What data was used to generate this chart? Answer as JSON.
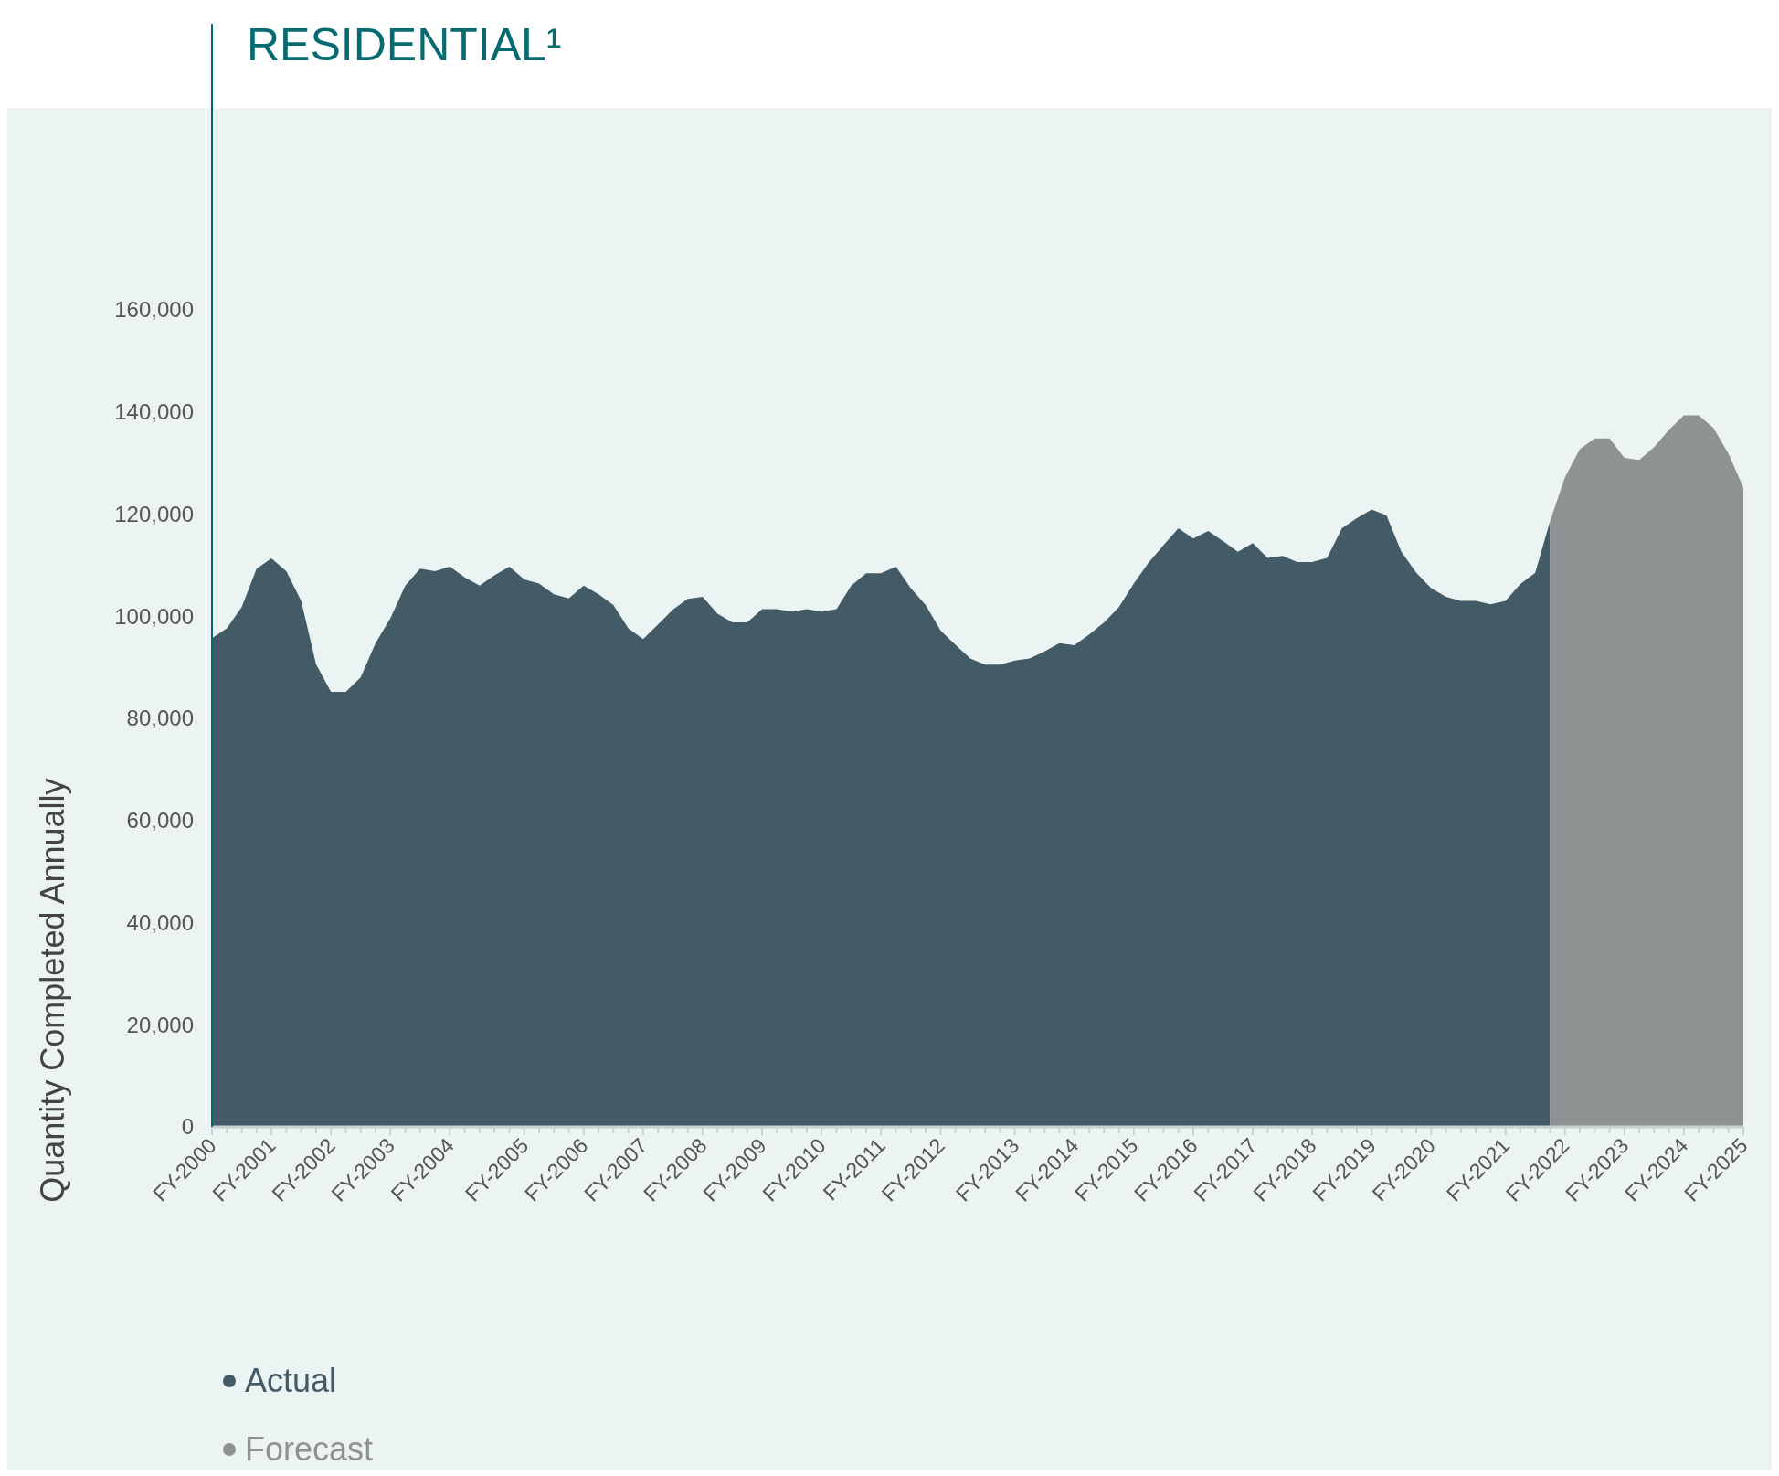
{
  "chart_data": {
    "type": "area",
    "title": "RESIDENTIAL¹",
    "ylabel": "Quantity Completed Annually",
    "ylim": [
      0,
      216000
    ],
    "yticks": [
      {
        "value": 0,
        "label": "0"
      },
      {
        "value": 20000,
        "label": "20,000"
      },
      {
        "value": 40000,
        "label": "40,000"
      },
      {
        "value": 60000,
        "label": "60,000"
      },
      {
        "value": 80000,
        "label": "80,000"
      },
      {
        "value": 100000,
        "label": "100,000"
      },
      {
        "value": 120000,
        "label": "120,000"
      },
      {
        "value": 140000,
        "label": "140,000"
      },
      {
        "value": 160000,
        "label": "160,000"
      }
    ],
    "categories": [
      "FY-2000",
      null,
      null,
      null,
      "FY-2001",
      null,
      null,
      null,
      "FY-2002",
      null,
      null,
      null,
      "FY-2003",
      null,
      null,
      null,
      "FY-2004",
      null,
      null,
      null,
      null,
      "FY-2005",
      null,
      null,
      null,
      "FY-2006",
      null,
      null,
      null,
      "FY-2007",
      null,
      null,
      null,
      "FY-2008",
      null,
      null,
      null,
      "FY-2009",
      null,
      null,
      null,
      "FY-2010",
      null,
      null,
      null,
      "FY-2011",
      null,
      null,
      null,
      "FY-2012",
      null,
      null,
      null,
      null,
      "FY-2013",
      null,
      null,
      null,
      "FY-2014",
      null,
      null,
      null,
      "FY-2015",
      null,
      null,
      null,
      "FY-2016",
      null,
      null,
      null,
      "FY-2017",
      null,
      null,
      null,
      "FY-2018",
      null,
      null,
      null,
      "FY-2019",
      null,
      null,
      null,
      "FY-2020",
      null,
      null,
      null,
      null,
      "FY-2021",
      null,
      null,
      null,
      "FY-2022",
      null,
      null,
      null,
      "FY-2023",
      null,
      null,
      null,
      "FY-2024",
      null,
      null,
      null,
      "FY-2025"
    ],
    "grid": false,
    "legend": "bottom left",
    "series": [
      {
        "name": "Actual",
        "color": "#435a67",
        "values": [
          95700,
          97600,
          101800,
          109300,
          111300,
          108800,
          103000,
          90600,
          85200,
          85200,
          88000,
          94700,
          99600,
          106000,
          109300,
          108800,
          109700,
          107600,
          106000,
          108000,
          109700,
          107200,
          106400,
          104300,
          103500,
          106000,
          104300,
          102200,
          97600,
          95500,
          98400,
          101300,
          103400,
          103800,
          100500,
          98800,
          98800,
          101400,
          101400,
          100900,
          101400,
          100900,
          101400,
          106000,
          108400,
          108400,
          109700,
          105500,
          102200,
          97200,
          94400,
          91700,
          90500,
          90500,
          91300,
          91700,
          93100,
          94700,
          94300,
          96400,
          98800,
          101800,
          106400,
          110500,
          113900,
          117200,
          115200,
          116700,
          114700,
          112600,
          114300,
          111400,
          111800,
          110600,
          110600,
          111400,
          117200,
          119200,
          120900,
          119700,
          112600,
          108500,
          105500,
          103800,
          103000,
          103000,
          102300,
          103000,
          106300,
          108500,
          118600,
          null,
          null,
          null,
          null,
          null,
          null,
          null,
          null,
          null,
          null,
          null,
          null,
          null
        ]
      },
      {
        "name": "Forecast",
        "color": "#8e9293",
        "values": [
          null,
          null,
          null,
          null,
          null,
          null,
          null,
          null,
          null,
          null,
          null,
          null,
          null,
          null,
          null,
          null,
          null,
          null,
          null,
          null,
          null,
          null,
          null,
          null,
          null,
          null,
          null,
          null,
          null,
          null,
          null,
          null,
          null,
          null,
          null,
          null,
          null,
          null,
          null,
          null,
          null,
          null,
          null,
          null,
          null,
          null,
          null,
          null,
          null,
          null,
          null,
          null,
          null,
          null,
          null,
          null,
          null,
          null,
          null,
          null,
          null,
          null,
          null,
          null,
          null,
          null,
          null,
          null,
          null,
          null,
          null,
          null,
          null,
          null,
          null,
          null,
          null,
          null,
          null,
          null,
          null,
          null,
          null,
          null,
          null,
          null,
          null,
          null,
          null,
          null,
          118600,
          127200,
          132700,
          134800,
          134800,
          131000,
          130600,
          133100,
          136500,
          139300,
          139300,
          136800,
          131800,
          125200
        ]
      }
    ]
  }
}
